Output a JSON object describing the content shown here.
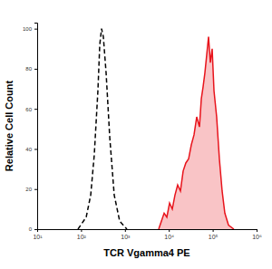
{
  "chart_data": {
    "type": "line",
    "x_label": "TCR Vgamma4 PE",
    "y_label": "Relative Cell Count",
    "log": "x",
    "xlim": [
      10,
      1000000
    ],
    "xticks": [
      {
        "value": 10,
        "label": "10¹"
      },
      {
        "value": 100,
        "label": "10²"
      },
      {
        "value": 1000,
        "label": "10³"
      },
      {
        "value": 10000,
        "label": "10⁴"
      },
      {
        "value": 100000,
        "label": "10⁵"
      },
      {
        "value": 1000000,
        "label": "10⁶"
      }
    ],
    "ylim": [
      0,
      103
    ],
    "yticks": [
      0,
      20,
      40,
      60,
      80,
      100
    ],
    "series": [
      {
        "type": "line",
        "color": "#000000",
        "line_style": "dashed",
        "x": [
          85,
          131,
          166,
          200,
          242,
          267,
          293,
          322,
          372,
          450,
          570,
          759,
          1110
        ],
        "values": [
          0,
          6,
          17,
          37,
          69,
          92,
          100,
          96,
          78,
          46,
          17,
          4,
          0
        ]
      },
      {
        "type": "area",
        "color": "#e8141c",
        "line_style": "solid",
        "x": [
          5870,
          6770,
          7820,
          9020,
          10400,
          12000,
          13800,
          15900,
          18400,
          21200,
          24400,
          28200,
          32500,
          37500,
          43200,
          49900,
          55000,
          60400,
          66400,
          73100,
          80400,
          88300,
          97200,
          107000,
          123000,
          142000,
          164000,
          189000,
          229000,
          304000
        ],
        "values": [
          0,
          4,
          8,
          6,
          13,
          10,
          17,
          22,
          19,
          29,
          33,
          35,
          42,
          47,
          56,
          51,
          65,
          71,
          78,
          87,
          96,
          83,
          90,
          69,
          56,
          35,
          19,
          8,
          2,
          0
        ]
      }
    ]
  }
}
